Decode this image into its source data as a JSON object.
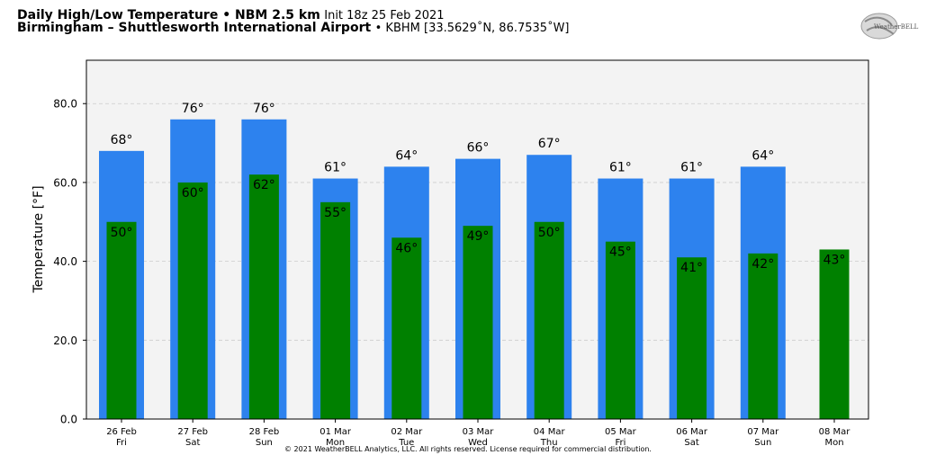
{
  "header": {
    "title_bold": "Daily High/Low Temperature • NBM 2.5 km",
    "title_rest": "Init 18z 25 Feb 2021",
    "location_bold": "Birmingham – Shuttlesworth International Airport",
    "location_rest": "• KBHM [33.5629˚N, 86.7535˚W]"
  },
  "logo": {
    "text": "WeatherBELL"
  },
  "footer": {
    "text": "© 2021 WeatherBELL Analytics, LLC. All rights reserved. License required for commercial distribution."
  },
  "colors": {
    "high": "#2d82ee",
    "low": "#008000",
    "plot_bg": "#f3f3f3",
    "grid": "#cccccc"
  },
  "chart_data": {
    "type": "bar",
    "ylabel": "Temperature [°F]",
    "ylim": [
      0,
      91
    ],
    "yticks": [
      0,
      20,
      40,
      60,
      80
    ],
    "ytick_labels": [
      "0.0",
      "20.0",
      "40.0",
      "60.0",
      "80.0"
    ],
    "grid": true,
    "categories": [
      {
        "date": "26 Feb",
        "day": "Fri"
      },
      {
        "date": "27 Feb",
        "day": "Sat"
      },
      {
        "date": "28 Feb",
        "day": "Sun"
      },
      {
        "date": "01 Mar",
        "day": "Mon"
      },
      {
        "date": "02 Mar",
        "day": "Tue"
      },
      {
        "date": "03 Mar",
        "day": "Wed"
      },
      {
        "date": "04 Mar",
        "day": "Thu"
      },
      {
        "date": "05 Mar",
        "day": "Fri"
      },
      {
        "date": "06 Mar",
        "day": "Sat"
      },
      {
        "date": "07 Mar",
        "day": "Sun"
      },
      {
        "date": "08 Mar",
        "day": "Mon"
      }
    ],
    "series": [
      {
        "values": [
          68,
          76,
          76,
          61,
          64,
          66,
          67,
          61,
          61,
          64,
          null
        ],
        "labels": [
          "68°",
          "76°",
          "76°",
          "61°",
          "64°",
          "66°",
          "67°",
          "61°",
          "61°",
          "64°",
          ""
        ]
      },
      {
        "values": [
          50,
          60,
          62,
          55,
          46,
          49,
          50,
          45,
          41,
          42,
          43
        ],
        "labels": [
          "50°",
          "60°",
          "62°",
          "55°",
          "46°",
          "49°",
          "50°",
          "45°",
          "41°",
          "42°",
          "43°"
        ]
      }
    ]
  }
}
